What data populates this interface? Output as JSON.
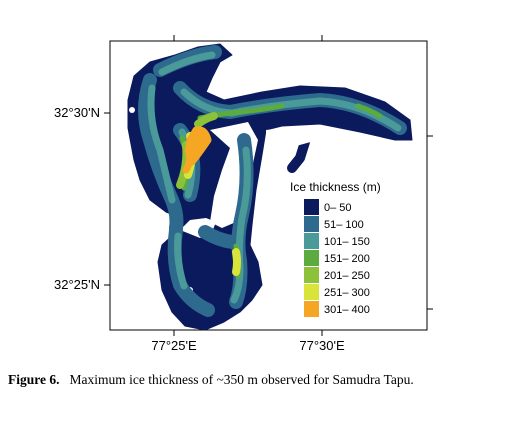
{
  "map": {
    "lat_labels": [
      "32°30'N",
      "32°25'N"
    ],
    "lon_labels": [
      "77°25'E",
      "77°30'E"
    ],
    "legend": {
      "title": "Ice thickness (m)",
      "classes": [
        {
          "label": "0– 50",
          "color": "#0a1a5c"
        },
        {
          "label": "51– 100",
          "color": "#2e6a8e"
        },
        {
          "label": "101– 150",
          "color": "#4a9a9a"
        },
        {
          "label": "151– 200",
          "color": "#5cab3e"
        },
        {
          "label": "201– 250",
          "color": "#8cc13a"
        },
        {
          "label": "251– 300",
          "color": "#d9e43a"
        },
        {
          "label": "301– 400",
          "color": "#f5a623"
        }
      ]
    }
  },
  "caption": {
    "label": "Figure 6.",
    "text": "Maximum ice thickness of ~350 m observed for Samudra Tapu."
  }
}
